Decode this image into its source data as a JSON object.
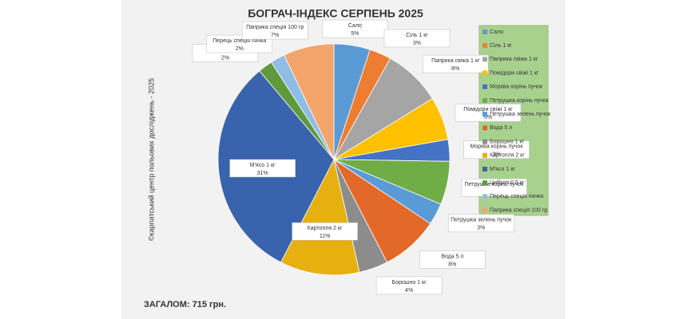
{
  "chart_data": {
    "type": "pie",
    "title": "БОГРАЧ-ІНДЕКС СЕРПЕНЬ 2025",
    "side_note": "©карпатський центр польових досліджень - 2025",
    "total": "ЗАГАЛОМ: 715 грн.",
    "categories": [
      "Сало",
      "Сіль 1 кг",
      "Паприка свіжа 1 кг",
      "Помідори свіжі 1 кг",
      "Морква корінь пучок",
      "Петрушка корінь пучок",
      "Петрушка зелень пучок",
      "Вода 5 л",
      "Борошно 1 кг",
      "Картопля 2 кг",
      "М'ясо 1 кг",
      "Цибуля 0,5 кг",
      "Перець спеція пачка",
      "Паприка спеція 100 гр"
    ],
    "values": [
      5,
      3,
      8,
      6,
      3,
      6,
      3,
      8,
      4,
      11,
      31,
      2,
      2,
      7
    ],
    "value_labels": [
      "5%",
      "3%",
      "8%",
      "6%",
      "3%",
      null,
      "3%",
      "8%",
      "4%",
      "11%",
      "31%",
      "2%",
      "2%",
      "7%"
    ],
    "colors": [
      "#5b9bd5",
      "#ed7d31",
      "#a5a5a5",
      "#ffc000",
      "#4472c4",
      "#70ad47",
      "#5b9bd5",
      "#e2692a",
      "#8c8c8c",
      "#e6b00f",
      "#3a63ad",
      "#5e9a3c",
      "#8fbde6",
      "#f4a56c"
    ],
    "legend": "right"
  }
}
